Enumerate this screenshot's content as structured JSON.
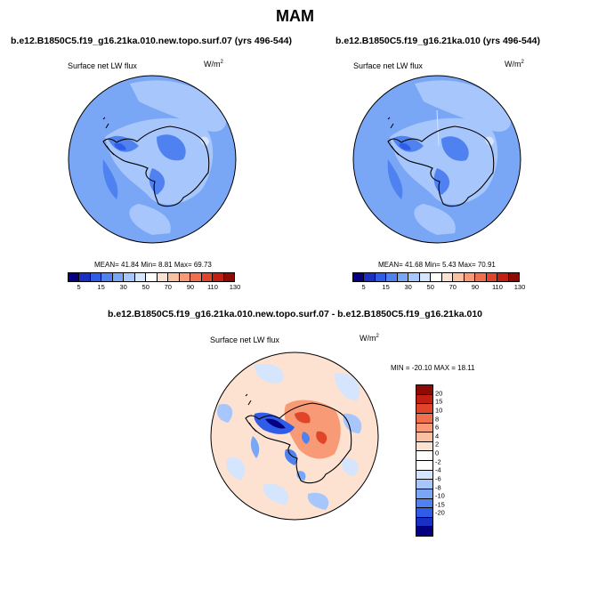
{
  "title": "MAM",
  "panels": [
    {
      "id": "p1",
      "title": "b.e12.B1850C5.f19_g16.21ka.010.new.topo.surf.07 (yrs 496-544)",
      "variable": "Surface net LW flux",
      "units": "W/m",
      "units_sup": "2",
      "stats": "MEAN=  41.84  Min=   8.81  Max=  69.73"
    },
    {
      "id": "p2",
      "title": "b.e12.B1850C5.f19_g16.21ka.010 (yrs 496-544)",
      "variable": "Surface net LW flux",
      "units": "W/m",
      "units_sup": "2",
      "stats": "MEAN=  41.68  Min=   5.43  Max=  70.91"
    }
  ],
  "diff_panel": {
    "title": "b.e12.B1850C5.f19_g16.21ka.010.new.topo.surf.07 - b.e12.B1850C5.f19_g16.21ka.010",
    "variable": "Surface net LW flux",
    "units": "W/m",
    "units_sup": "2",
    "stats": "MIN = -20.10 MAX =  18.11"
  },
  "colorbar_abs": {
    "labels": [
      "5",
      "15",
      "30",
      "50",
      "70",
      "90",
      "110",
      "130"
    ],
    "colors": [
      "#050080",
      "#1a2fc4",
      "#2f5de8",
      "#4f82f0",
      "#7aa6f6",
      "#a7c6fb",
      "#d4e5fd",
      "#ffffff",
      "#fde2d2",
      "#fbbfa1",
      "#f79a75",
      "#f0704d",
      "#e0452a",
      "#c11f12",
      "#8f0a04"
    ]
  },
  "colorbar_diff": {
    "labels": [
      "20",
      "15",
      "10",
      "8",
      "6",
      "4",
      "2",
      "0",
      "-2",
      "-4",
      "-6",
      "-8",
      "-10",
      "-15",
      "-20"
    ],
    "colors": [
      "#8f0a04",
      "#c11f12",
      "#e0452a",
      "#f0704d",
      "#f79a75",
      "#fbbfa1",
      "#fde2d2",
      "#ffffff",
      "#ffffff",
      "#d4e5fd",
      "#a7c6fb",
      "#7aa6f6",
      "#4f82f0",
      "#2f5de8",
      "#1a2fc4",
      "#050080"
    ]
  }
}
